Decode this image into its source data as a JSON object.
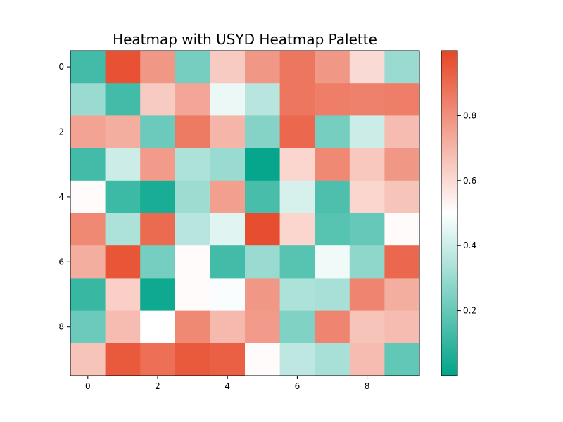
{
  "chart_data": {
    "type": "heatmap",
    "title": "Heatmap with USYD Heatmap Palette",
    "xlabel": "",
    "ylabel": "",
    "x_ticks": [
      "0",
      "2",
      "4",
      "6",
      "8"
    ],
    "y_ticks": [
      "0",
      "2",
      "4",
      "6",
      "8"
    ],
    "colorbar_ticks": [
      "0.2",
      "0.4",
      "0.6",
      "0.8"
    ],
    "vmin": 0.0,
    "vmax": 1.0,
    "colormap": [
      "#00A489",
      "#FFFFFF",
      "#E64626"
    ],
    "grid": false,
    "values": [
      [
        0.13,
        0.97,
        0.78,
        0.23,
        0.64,
        0.78,
        0.87,
        0.78,
        0.6,
        0.3
      ],
      [
        0.3,
        0.13,
        0.64,
        0.74,
        0.46,
        0.36,
        0.87,
        0.85,
        0.84,
        0.85
      ],
      [
        0.75,
        0.72,
        0.21,
        0.86,
        0.7,
        0.26,
        0.91,
        0.23,
        0.4,
        0.68
      ],
      [
        0.13,
        0.4,
        0.77,
        0.34,
        0.3,
        0.01,
        0.61,
        0.82,
        0.65,
        0.78
      ],
      [
        0.51,
        0.12,
        0.05,
        0.31,
        0.76,
        0.14,
        0.42,
        0.15,
        0.61,
        0.66
      ],
      [
        0.82,
        0.34,
        0.9,
        0.36,
        0.44,
        0.98,
        0.61,
        0.17,
        0.2,
        0.51
      ],
      [
        0.72,
        0.96,
        0.23,
        0.51,
        0.13,
        0.3,
        0.17,
        0.47,
        0.28,
        0.91
      ],
      [
        0.11,
        0.63,
        0.03,
        0.51,
        0.49,
        0.78,
        0.34,
        0.33,
        0.83,
        0.72
      ],
      [
        0.21,
        0.68,
        0.5,
        0.82,
        0.69,
        0.77,
        0.25,
        0.83,
        0.66,
        0.68
      ],
      [
        0.66,
        0.95,
        0.89,
        0.95,
        0.93,
        0.51,
        0.37,
        0.33,
        0.68,
        0.19
      ]
    ]
  }
}
